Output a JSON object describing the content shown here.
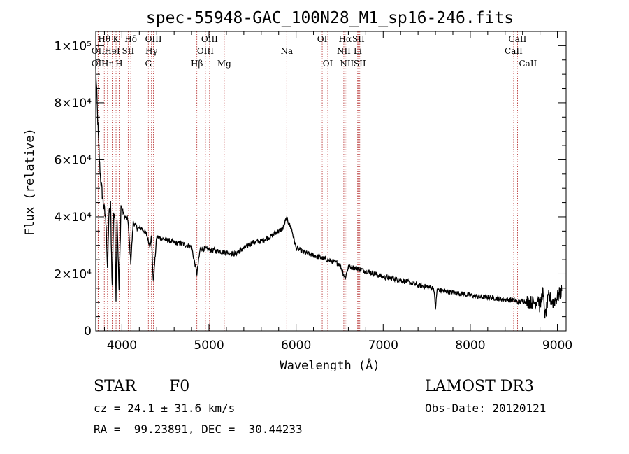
{
  "chart_data": {
    "type": "line",
    "title": "spec-55948-GAC_100N28_M1_sp16-246.fits",
    "xlabel": "Wavelength (Å)",
    "ylabel": "Flux (relative)",
    "xlim": [
      3700,
      9100
    ],
    "ylim": [
      0,
      105000
    ],
    "x_ticks": [
      4000,
      5000,
      6000,
      7000,
      8000,
      9000
    ],
    "x_tick_labels": [
      "4000",
      "5000",
      "6000",
      "7000",
      "8000",
      "9000"
    ],
    "y_ticks": [
      0,
      20000,
      40000,
      60000,
      80000,
      100000
    ],
    "y_tick_labels": [
      "0",
      "2×10⁴",
      "4×10⁴",
      "6×10⁴",
      "8×10⁴",
      "1×10⁵"
    ],
    "series": [
      {
        "name": "spectrum",
        "x": [
          3700,
          3715,
          3730,
          3745,
          3760,
          3790,
          3820,
          3835,
          3850,
          3870,
          3889,
          3905,
          3920,
          3933,
          3945,
          3968,
          3990,
          4030,
          4070,
          4102,
          4130,
          4180,
          4230,
          4280,
          4320,
          4340,
          4360,
          4400,
          4500,
          4600,
          4700,
          4800,
          4861,
          4900,
          5000,
          5100,
          5200,
          5300,
          5400,
          5500,
          5600,
          5700,
          5800,
          5850,
          5890,
          5950,
          6000,
          6100,
          6200,
          6300,
          6400,
          6500,
          6563,
          6600,
          6700,
          6800,
          6900,
          7000,
          7100,
          7200,
          7300,
          7400,
          7500,
          7580,
          7600,
          7620,
          7700,
          7800,
          7900,
          8000,
          8100,
          8200,
          8300,
          8400,
          8500,
          8542,
          8600,
          8662,
          8700,
          8750,
          8780,
          8800,
          8830,
          8860,
          8900,
          8950,
          9000,
          9050
        ],
        "y": [
          92000,
          80000,
          68000,
          58000,
          52000,
          44000,
          38000,
          20000,
          40000,
          44000,
          15000,
          42000,
          38000,
          12000,
          40000,
          14000,
          44000,
          40000,
          39000,
          24000,
          38000,
          36000,
          36000,
          34000,
          30000,
          33000,
          17000,
          33000,
          32000,
          31000,
          30500,
          29500,
          20000,
          29000,
          28500,
          28000,
          27500,
          27000,
          29000,
          31000,
          31500,
          33000,
          35000,
          36000,
          39500,
          35500,
          29000,
          27500,
          26500,
          25500,
          24500,
          23500,
          18500,
          22500,
          22000,
          21000,
          20000,
          19000,
          18500,
          17800,
          17000,
          16000,
          15500,
          15000,
          8000,
          14500,
          14000,
          13500,
          13000,
          12500,
          12000,
          11800,
          11500,
          11000,
          10800,
          10000,
          10500,
          10200,
          10000,
          10000,
          12000,
          8000,
          14000,
          5000,
          12000,
          10000,
          12000,
          14000
        ]
      }
    ],
    "line_markers": [
      {
        "wavelength": 3727,
        "top": "OII",
        "row": 2
      },
      {
        "wavelength": 3727,
        "top": "OII",
        "row": 3
      },
      {
        "wavelength": 3798,
        "top": "Hθ",
        "row": 1
      },
      {
        "wavelength": 3835,
        "top": "Hη",
        "row": 3
      },
      {
        "wavelength": 3889,
        "top": "HeI",
        "row": 2
      },
      {
        "wavelength": 3933,
        "top": "K",
        "row": 1
      },
      {
        "wavelength": 3968,
        "top": "H",
        "row": 3
      },
      {
        "wavelength": 4072,
        "top": "SII",
        "row": 2
      },
      {
        "wavelength": 4102,
        "top": "Hδ",
        "row": 1
      },
      {
        "wavelength": 4304,
        "top": "G",
        "row": 3
      },
      {
        "wavelength": 4340,
        "top": "Hγ",
        "row": 2
      },
      {
        "wavelength": 4363,
        "top": "OIII",
        "row": 1
      },
      {
        "wavelength": 4861,
        "top": "Hβ",
        "row": 3
      },
      {
        "wavelength": 4959,
        "top": "OIII",
        "row": 2
      },
      {
        "wavelength": 5007,
        "top": "OIII",
        "row": 1
      },
      {
        "wavelength": 5175,
        "top": "Mg",
        "row": 3
      },
      {
        "wavelength": 5893,
        "top": "Na",
        "row": 2
      },
      {
        "wavelength": 6300,
        "top": "OI",
        "row": 1
      },
      {
        "wavelength": 6364,
        "top": "OI",
        "row": 3
      },
      {
        "wavelength": 6548,
        "top": "NII",
        "row": 2
      },
      {
        "wavelength": 6563,
        "top": "Hα",
        "row": 1
      },
      {
        "wavelength": 6583,
        "top": "NII",
        "row": 3
      },
      {
        "wavelength": 6707,
        "top": "Li",
        "row": 2
      },
      {
        "wavelength": 6716,
        "top": "SII",
        "row": 1
      },
      {
        "wavelength": 6731,
        "top": "SII",
        "row": 3
      },
      {
        "wavelength": 8498,
        "top": "CaII",
        "row": 2
      },
      {
        "wavelength": 8542,
        "top": "CaII",
        "row": 1
      },
      {
        "wavelength": 8662,
        "top": "CaII",
        "row": 3
      }
    ]
  },
  "info": {
    "class_label": "STAR",
    "subclass_label": "F0",
    "survey_label": "LAMOST DR3",
    "cz_text": "cz = 24.1 ± 31.6 km/s",
    "obs_date_text": "Obs-Date: 20120121",
    "coords_text": "RA =  99.23891, DEC =  30.44233"
  },
  "colors": {
    "spectrum": "#000000",
    "marker_line": "#b22222",
    "axis": "#000000",
    "background": "#ffffff"
  }
}
